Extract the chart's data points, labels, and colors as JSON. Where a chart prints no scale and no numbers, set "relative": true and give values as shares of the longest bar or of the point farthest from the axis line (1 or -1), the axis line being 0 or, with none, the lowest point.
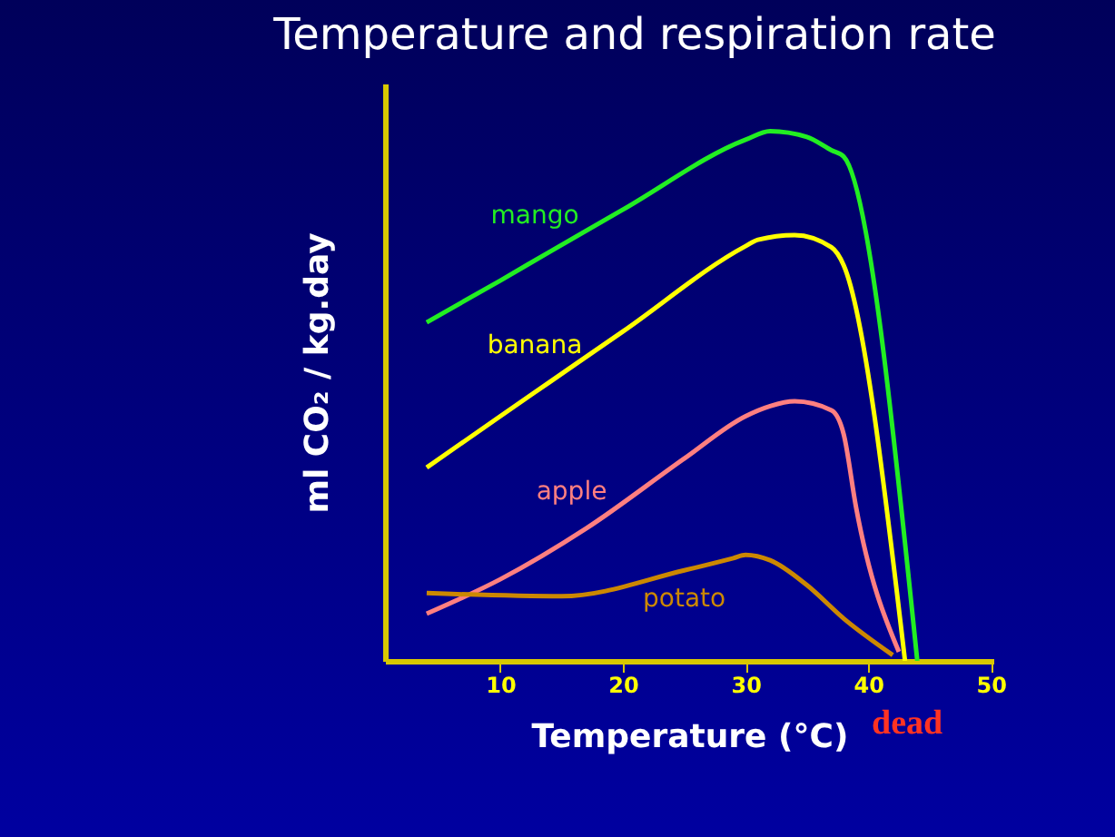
{
  "chart_data": {
    "type": "line",
    "title": "Temperature and respiration rate",
    "xlabel": "Temperature (°C)",
    "ylabel": "ml CO₂ / kg.day",
    "relative": true,
    "xlim": [
      0.6,
      50.2
    ],
    "xticks": [
      10,
      20,
      30,
      40,
      50
    ],
    "grid": false,
    "legend": false,
    "marker": "none",
    "line_style": "solid",
    "annotations": [
      "dead"
    ],
    "series": [
      {
        "name": "mango",
        "color": "#22ee22",
        "x": [
          4,
          10,
          14,
          20,
          30,
          32,
          35,
          37,
          38,
          44
        ],
        "values": [
          0.639,
          0.718,
          0.772,
          0.852,
          0.984,
          1.0,
          0.989,
          0.964,
          0.952,
          0
        ]
      },
      {
        "name": "banana",
        "color": "#ffff00",
        "x": [
          4,
          10,
          14,
          20,
          30,
          31,
          34,
          37,
          38,
          43
        ],
        "values": [
          0.365,
          0.462,
          0.526,
          0.622,
          0.783,
          0.795,
          0.804,
          0.781,
          0.747,
          0
        ]
      },
      {
        "name": "apple",
        "color": "#ff7f80",
        "x": [
          4,
          10,
          17,
          25,
          30,
          32,
          34,
          37,
          38,
          39,
          42.5
        ],
        "values": [
          0.089,
          0.154,
          0.25,
          0.382,
          0.462,
          0.481,
          0.49,
          0.473,
          0.428,
          0.291,
          0.017
        ]
      },
      {
        "name": "potato",
        "color": "#cc8800",
        "x": [
          4,
          15,
          25,
          29,
          30,
          32,
          35,
          38,
          42
        ],
        "values": [
          0.128,
          0.122,
          0.171,
          0.194,
          0.2,
          0.19,
          0.143,
          0.08,
          0.011
        ]
      }
    ]
  }
}
